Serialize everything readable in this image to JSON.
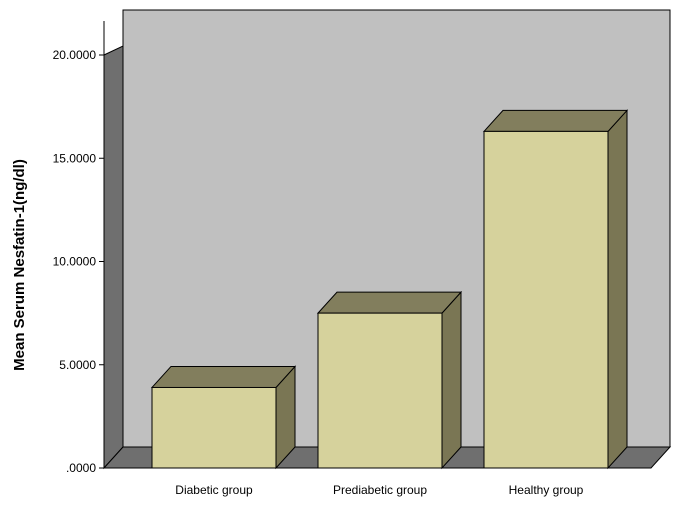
{
  "chart_data": {
    "type": "bar",
    "style": "3d",
    "title": "",
    "xlabel": "",
    "ylabel": "Mean  Serum Nesfatin-1(ng/dl)",
    "categories": [
      "Diabetic group",
      "Prediabetic group",
      "Healthy group"
    ],
    "values": [
      3.9,
      7.5,
      16.3
    ],
    "ylim": [
      0,
      20
    ],
    "yticks": [
      0,
      5,
      10,
      15,
      20
    ],
    "ytick_labels": [
      ".0000",
      "5.0000",
      "10.0000",
      "15.0000",
      "20.0000"
    ],
    "grid": false,
    "legend": "none"
  },
  "colors": {
    "bar_front": "#d6d29c",
    "bar_top": "#827e5d",
    "bar_side": "#7a7654",
    "back_wall": "#c0c0c0",
    "side_wall": "#6f6f6f",
    "floor": "#6f6f6f"
  }
}
